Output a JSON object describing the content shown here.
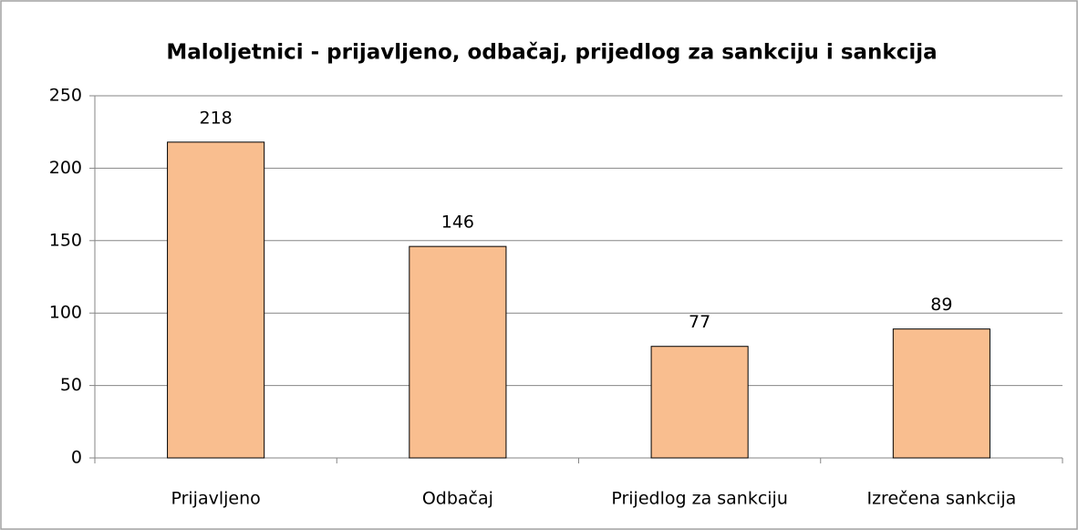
{
  "chart_data": {
    "type": "bar",
    "title": "Maloljetnici - prijavljeno, odbačaj, prijedlog za sankciju i sankcija",
    "categories": [
      "Prijavljeno",
      "Odbačaj",
      "Prijedlog za sankciju",
      "Izrečena sankcija"
    ],
    "values": [
      218,
      146,
      77,
      89
    ],
    "color": "#f9be8f",
    "ylim": [
      0,
      250
    ],
    "yticks": [
      0,
      50,
      100,
      150,
      200,
      250
    ],
    "grid": true
  }
}
